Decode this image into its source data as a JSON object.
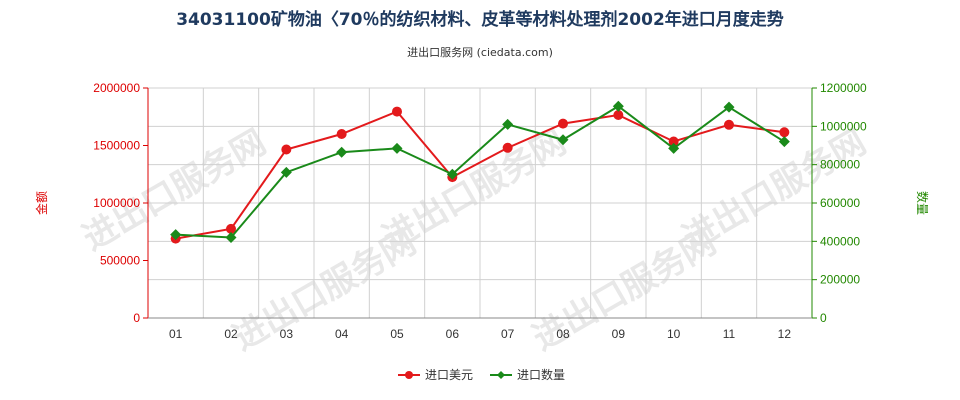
{
  "chart_data": {
    "type": "line",
    "title": "34031100矿物油〈70％的纺织材料、皮革等材料处理剂2002年进口月度走势",
    "subtitle": "进出口服务网 (ciedata.com)",
    "watermark": "进出口服务网",
    "categories": [
      "01",
      "02",
      "03",
      "04",
      "05",
      "06",
      "07",
      "08",
      "09",
      "10",
      "11",
      "12"
    ],
    "y_left": {
      "label": "金额",
      "range": [
        0,
        2000000
      ],
      "ticks": [
        "0",
        "500000",
        "1000000",
        "1500000",
        "2000000"
      ],
      "color": "#dd0000"
    },
    "y_right": {
      "label": "数量",
      "range": [
        0,
        1200000
      ],
      "ticks": [
        "0",
        "200000",
        "400000",
        "600000",
        "800000",
        "1000000",
        "1200000"
      ],
      "color": "#228800"
    },
    "grid": true,
    "legend_position": "bottom-center",
    "series": [
      {
        "name": "进口美元",
        "axis": "left",
        "color": "#e31a1c",
        "marker": "circle",
        "values": [
          690000,
          775000,
          1465000,
          1600000,
          1795000,
          1225000,
          1480000,
          1690000,
          1765000,
          1535000,
          1680000,
          1615000
        ]
      },
      {
        "name": "进口数量",
        "axis": "right",
        "color": "#1a8a1a",
        "marker": "diamond",
        "values": [
          435000,
          420000,
          760000,
          865000,
          885000,
          750000,
          1010000,
          930000,
          1105000,
          885000,
          1100000,
          920000
        ]
      }
    ]
  }
}
